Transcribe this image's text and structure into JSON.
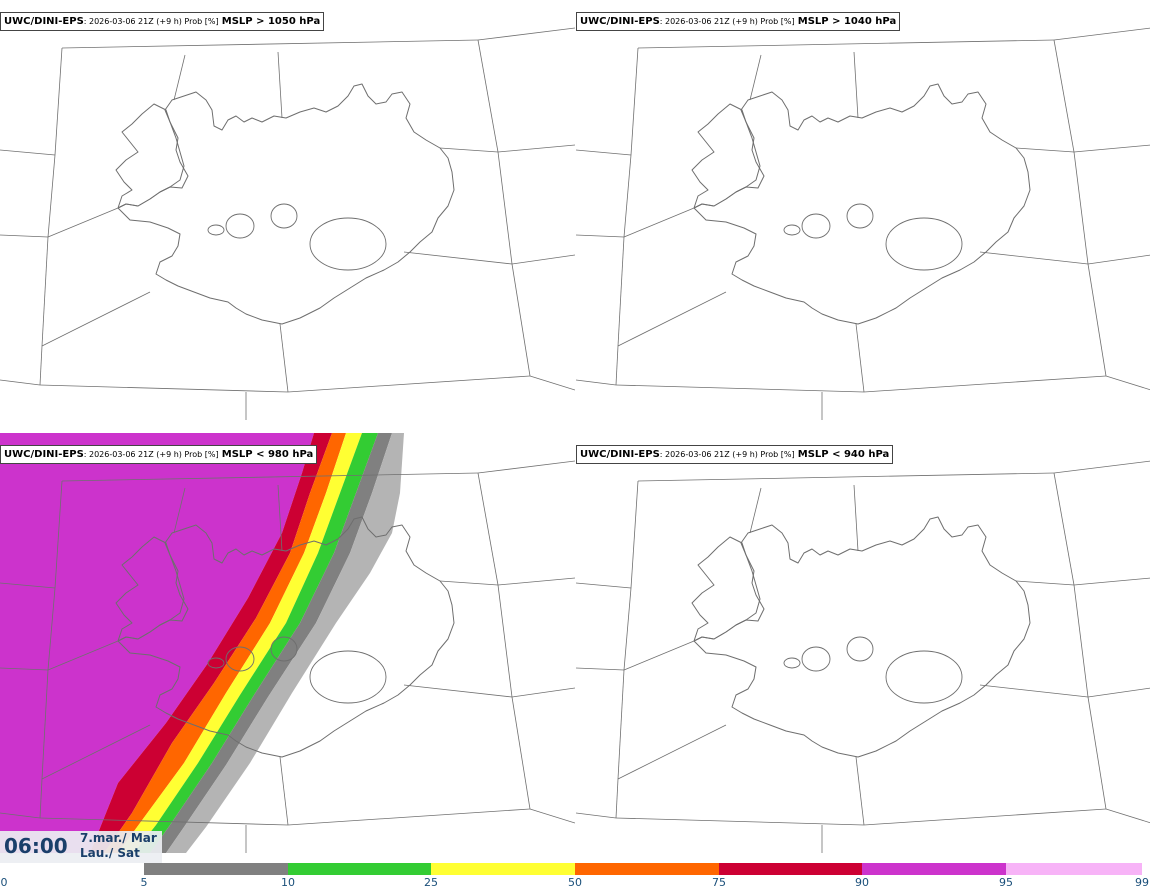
{
  "panels": [
    {
      "model": "UWC/DINI-EPS",
      "meta": ": 2026-03-06 21Z (+9 h) Prob [%]",
      "param": "MSLP > 1050 hPa"
    },
    {
      "model": "UWC/DINI-EPS",
      "meta": ": 2026-03-06 21Z (+9 h) Prob [%]",
      "param": "MSLP > 1040 hPa"
    },
    {
      "model": "UWC/DINI-EPS",
      "meta": ": 2026-03-06 21Z (+9 h) Prob [%]",
      "param": "MSLP < 980 hPa"
    },
    {
      "model": "UWC/DINI-EPS",
      "meta": ": 2026-03-06 21Z (+9 h) Prob [%]",
      "param": "MSLP < 940 hPa"
    }
  ],
  "valid_time": {
    "time": "06:00",
    "date_line1": "7.mar./ Mar",
    "date_line2": "Lau./ Sat"
  },
  "colorbar": {
    "ticks": [
      "0",
      "5",
      "10",
      "25",
      "50",
      "75",
      "90",
      "95",
      "99"
    ],
    "colors": [
      "#ffffff",
      "#b4b4b4",
      "#808080",
      "#33cc33",
      "#ffff33",
      "#ff6600",
      "#cc0033",
      "#cc33cc",
      "#f7b3f7"
    ]
  },
  "colors": {
    "coast": "#6e6e6e",
    "grid": "#707070",
    "title_border": "#444444",
    "time_text": "#1a3f6a"
  }
}
